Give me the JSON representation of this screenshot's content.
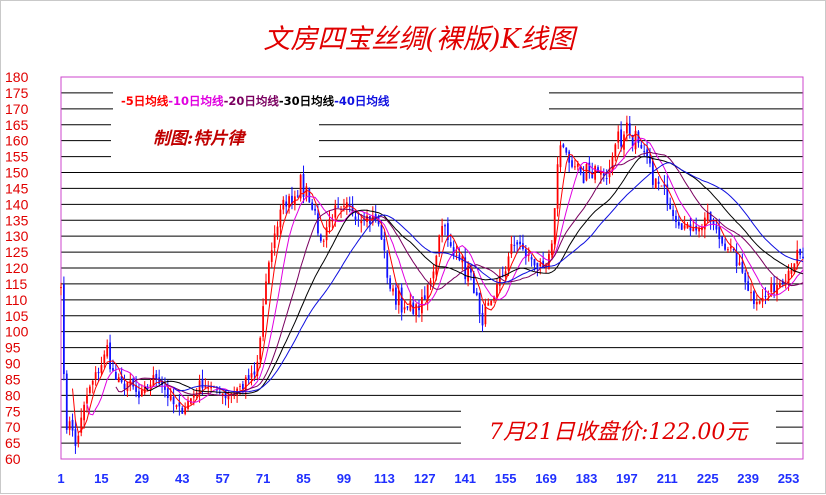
{
  "chart_data": {
    "type": "candlestick",
    "title": "文房四宝丝绸(裸版)K线图",
    "author_note": "制图:特片律",
    "close_note": "7月21日收盘价:122.00元",
    "legend": [
      "-5日均线",
      "-10日均线",
      "-20日均线",
      "-30日均线",
      "-40日均线"
    ],
    "series_colors": {
      "MA5": "#ff0000",
      "MA10": "#e000e0",
      "MA20": "#7a0060",
      "MA30": "#000000",
      "MA40": "#1010e0"
    },
    "up_color": "#ff0000",
    "down_color": "#1010ff",
    "ylim": [
      60,
      180
    ],
    "yticks": [
      60,
      65,
      70,
      75,
      80,
      85,
      90,
      95,
      100,
      105,
      110,
      115,
      120,
      125,
      130,
      135,
      140,
      145,
      150,
      155,
      160,
      165,
      170,
      175,
      180
    ],
    "xticks": [
      1,
      15,
      29,
      43,
      57,
      71,
      85,
      99,
      113,
      127,
      141,
      155,
      169,
      183,
      197,
      211,
      225,
      239,
      253
    ],
    "close_anchors": [
      [
        1,
        116
      ],
      [
        2,
        85
      ],
      [
        3,
        70
      ],
      [
        4,
        73
      ],
      [
        5,
        68
      ],
      [
        6,
        64
      ],
      [
        8,
        72
      ],
      [
        10,
        80
      ],
      [
        12,
        84
      ],
      [
        14,
        88
      ],
      [
        15,
        90
      ],
      [
        16,
        92
      ],
      [
        17,
        95
      ],
      [
        18,
        90
      ],
      [
        19,
        87
      ],
      [
        20,
        85
      ],
      [
        22,
        83
      ],
      [
        24,
        84
      ],
      [
        26,
        82
      ],
      [
        28,
        79
      ],
      [
        30,
        81
      ],
      [
        32,
        84
      ],
      [
        34,
        86
      ],
      [
        36,
        84
      ],
      [
        38,
        80
      ],
      [
        40,
        77
      ],
      [
        42,
        75
      ],
      [
        44,
        77
      ],
      [
        46,
        79
      ],
      [
        48,
        82
      ],
      [
        50,
        84
      ],
      [
        52,
        83
      ],
      [
        54,
        81
      ],
      [
        56,
        82
      ],
      [
        58,
        80
      ],
      [
        60,
        81
      ],
      [
        62,
        82
      ],
      [
        64,
        83
      ],
      [
        66,
        85
      ],
      [
        68,
        86
      ],
      [
        69,
        90
      ],
      [
        70,
        98
      ],
      [
        71,
        108
      ],
      [
        72,
        115
      ],
      [
        73,
        120
      ],
      [
        74,
        126
      ],
      [
        75,
        130
      ],
      [
        76,
        134
      ],
      [
        77,
        138
      ],
      [
        78,
        142
      ],
      [
        79,
        140
      ],
      [
        80,
        143
      ],
      [
        81,
        139
      ],
      [
        82,
        141
      ],
      [
        83,
        144
      ],
      [
        84,
        148
      ],
      [
        85,
        144
      ],
      [
        86,
        146
      ],
      [
        87,
        142
      ],
      [
        88,
        140
      ],
      [
        89,
        136
      ],
      [
        90,
        132
      ],
      [
        91,
        128
      ],
      [
        92,
        130
      ],
      [
        93,
        133
      ],
      [
        94,
        135
      ],
      [
        96,
        138
      ],
      [
        98,
        137
      ],
      [
        100,
        139
      ],
      [
        102,
        138
      ],
      [
        104,
        136
      ],
      [
        106,
        137
      ],
      [
        108,
        135
      ],
      [
        110,
        136
      ],
      [
        112,
        130
      ],
      [
        113,
        124
      ],
      [
        114,
        118
      ],
      [
        115,
        114
      ],
      [
        116,
        112
      ],
      [
        117,
        110
      ],
      [
        118,
        113
      ],
      [
        119,
        108
      ],
      [
        120,
        106
      ],
      [
        122,
        108
      ],
      [
        124,
        107
      ],
      [
        126,
        109
      ],
      [
        127,
        110
      ],
      [
        128,
        114
      ],
      [
        130,
        120
      ],
      [
        132,
        130
      ],
      [
        133,
        135
      ],
      [
        134,
        132
      ],
      [
        135,
        128
      ],
      [
        136,
        126
      ],
      [
        137,
        124
      ],
      [
        138,
        126
      ],
      [
        140,
        122
      ],
      [
        141,
        118
      ],
      [
        142,
        120
      ],
      [
        143,
        117
      ],
      [
        144,
        114
      ],
      [
        145,
        110
      ],
      [
        146,
        104
      ],
      [
        147,
        100
      ],
      [
        148,
        106
      ],
      [
        150,
        110
      ],
      [
        152,
        114
      ],
      [
        154,
        118
      ],
      [
        155,
        120
      ],
      [
        156,
        124
      ],
      [
        157,
        126
      ],
      [
        158,
        127
      ],
      [
        159,
        128
      ],
      [
        160,
        127
      ],
      [
        161,
        125
      ],
      [
        162,
        124
      ],
      [
        164,
        123
      ],
      [
        166,
        121
      ],
      [
        168,
        118
      ],
      [
        169,
        120
      ],
      [
        170,
        123
      ],
      [
        171,
        126
      ],
      [
        172,
        140
      ],
      [
        173,
        152
      ],
      [
        174,
        160
      ],
      [
        175,
        158
      ],
      [
        176,
        156
      ],
      [
        177,
        152
      ],
      [
        178,
        150
      ],
      [
        179,
        152
      ],
      [
        180,
        154
      ],
      [
        181,
        150
      ],
      [
        182,
        148
      ],
      [
        183,
        152
      ],
      [
        184,
        150
      ],
      [
        185,
        148
      ],
      [
        186,
        152
      ],
      [
        187,
        149
      ],
      [
        188,
        151
      ],
      [
        189,
        148
      ],
      [
        190,
        150
      ],
      [
        191,
        152
      ],
      [
        192,
        155
      ],
      [
        193,
        160
      ],
      [
        194,
        162
      ],
      [
        195,
        159
      ],
      [
        196,
        163
      ],
      [
        197,
        165
      ],
      [
        198,
        162
      ],
      [
        199,
        160
      ],
      [
        200,
        162
      ],
      [
        201,
        158
      ],
      [
        202,
        156
      ],
      [
        204,
        154
      ],
      [
        206,
        148
      ],
      [
        208,
        146
      ],
      [
        210,
        144
      ],
      [
        212,
        140
      ],
      [
        214,
        136
      ],
      [
        216,
        134
      ],
      [
        218,
        132
      ],
      [
        220,
        134
      ],
      [
        222,
        132
      ],
      [
        224,
        136
      ],
      [
        226,
        135
      ],
      [
        228,
        131
      ],
      [
        230,
        128
      ],
      [
        232,
        127
      ],
      [
        234,
        124
      ],
      [
        236,
        120
      ],
      [
        238,
        117
      ],
      [
        239,
        114
      ],
      [
        240,
        112
      ],
      [
        241,
        110
      ],
      [
        242,
        111
      ],
      [
        244,
        110
      ],
      [
        246,
        112
      ],
      [
        248,
        114
      ],
      [
        250,
        116
      ],
      [
        252,
        118
      ],
      [
        254,
        121
      ],
      [
        256,
        124
      ],
      [
        257,
        123
      ],
      [
        258,
        122
      ]
    ]
  }
}
